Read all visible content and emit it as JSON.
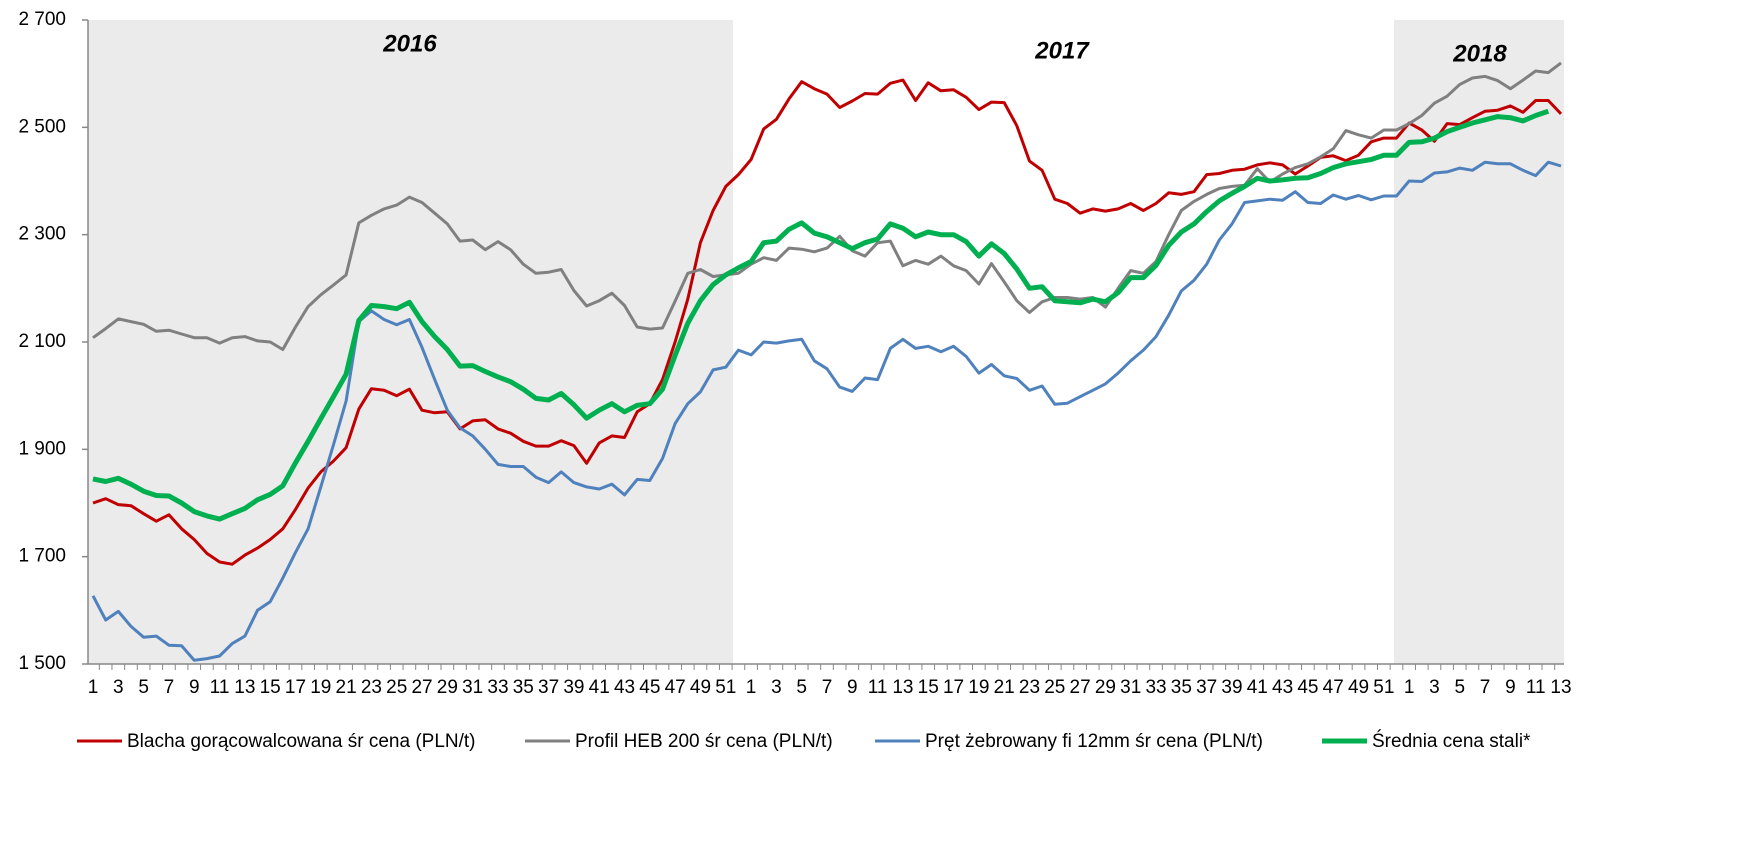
{
  "chart_data": {
    "type": "line",
    "annotations": [
      "2016",
      "2017",
      "2018"
    ],
    "categories": [
      "1",
      null,
      "3",
      null,
      "5",
      null,
      "7",
      null,
      "9",
      null,
      "11",
      null,
      "13",
      null,
      "15",
      null,
      "17",
      null,
      "19",
      null,
      "21",
      null,
      "23",
      null,
      "25",
      null,
      "27",
      null,
      "29",
      null,
      "31",
      null,
      "33",
      null,
      "35",
      null,
      "37",
      null,
      "39",
      null,
      "41",
      null,
      "43",
      null,
      "45",
      null,
      "47",
      null,
      "49",
      null,
      "51",
      null,
      "1",
      null,
      "3",
      null,
      "5",
      null,
      "7",
      null,
      "9",
      null,
      "11",
      null,
      "13",
      null,
      "15",
      null,
      "17",
      null,
      "19",
      null,
      "21",
      null,
      "23",
      null,
      "25",
      null,
      "27",
      null,
      "29",
      null,
      "31",
      null,
      "33",
      null,
      "35",
      null,
      "37",
      null,
      "39",
      null,
      "41",
      null,
      "43",
      null,
      "45",
      null,
      "47",
      null,
      "49",
      null,
      "51",
      null,
      "1",
      null,
      "3",
      null,
      "5",
      null,
      "7",
      null,
      "9",
      null,
      "11",
      null,
      "13"
    ],
    "series": [
      {
        "name": "Blacha gorącowalcowana śr cena (PLN/t)",
        "color": "#c00000",
        "width": 3,
        "values": [
          1800,
          1808,
          1797,
          1795,
          1780,
          1766,
          1778,
          1752,
          1732,
          1706,
          1690,
          1686,
          1703,
          1716,
          1732,
          1752,
          1788,
          1828,
          1858,
          1878,
          1903,
          1975,
          2013,
          2010,
          2000,
          2012,
          1973,
          1968,
          1970,
          1938,
          1953,
          1955,
          1938,
          1930,
          1915,
          1906,
          1906,
          1916,
          1907,
          1874,
          1912,
          1925,
          1922,
          1970,
          1985,
          2030,
          2100,
          2180,
          2285,
          2345,
          2390,
          2412,
          2440,
          2497,
          2515,
          2553,
          2585,
          2572,
          2562,
          2537,
          2549,
          2563,
          2562,
          2582,
          2588,
          2550,
          2583,
          2568,
          2570,
          2556,
          2533,
          2547,
          2546,
          2503,
          2437,
          2420,
          2366,
          2358,
          2340,
          2348,
          2344,
          2348,
          2358,
          2345,
          2358,
          2378,
          2375,
          2380,
          2412,
          2414,
          2420,
          2422,
          2430,
          2434,
          2430,
          2413,
          2428,
          2444,
          2447,
          2438,
          2448,
          2473,
          2480,
          2480,
          2508,
          2495,
          2474,
          2507,
          2505,
          2518,
          2530,
          2532,
          2540,
          2528,
          2550,
          2550,
          2525
        ]
      },
      {
        "name": "Profil HEB 200 śr cena (PLN/t)",
        "color": "#808080",
        "width": 3,
        "values": [
          2108,
          2125,
          2143,
          2138,
          2133,
          2120,
          2122,
          2115,
          2108,
          2108,
          2098,
          2108,
          2110,
          2102,
          2100,
          2086,
          2128,
          2166,
          2188,
          2206,
          2225,
          2322,
          2336,
          2348,
          2355,
          2370,
          2360,
          2340,
          2320,
          2288,
          2290,
          2272,
          2287,
          2272,
          2245,
          2228,
          2230,
          2235,
          2196,
          2167,
          2177,
          2191,
          2168,
          2128,
          2124,
          2126,
          2176,
          2228,
          2235,
          2222,
          2225,
          2228,
          2245,
          2257,
          2252,
          2275,
          2273,
          2268,
          2275,
          2297,
          2270,
          2260,
          2285,
          2288,
          2242,
          2252,
          2245,
          2260,
          2242,
          2233,
          2208,
          2246,
          2212,
          2177,
          2155,
          2175,
          2183,
          2183,
          2180,
          2183,
          2165,
          2200,
          2233,
          2228,
          2250,
          2300,
          2345,
          2362,
          2375,
          2386,
          2390,
          2392,
          2423,
          2398,
          2413,
          2425,
          2432,
          2445,
          2460,
          2494,
          2486,
          2480,
          2495,
          2495,
          2507,
          2522,
          2545,
          2558,
          2580,
          2592,
          2595,
          2587,
          2572,
          2588,
          2605,
          2602,
          2620
        ]
      },
      {
        "name": "Pręt żebrowany fi 12mm  śr cena (PLN/t)",
        "color": "#4f81bd",
        "width": 3,
        "values": [
          1627,
          1582,
          1598,
          1570,
          1550,
          1552,
          1535,
          1534,
          1507,
          1510,
          1515,
          1538,
          1552,
          1600,
          1616,
          1660,
          1708,
          1752,
          1830,
          1908,
          1990,
          2138,
          2158,
          2142,
          2132,
          2142,
          2090,
          2030,
          1973,
          1940,
          1925,
          1900,
          1872,
          1868,
          1868,
          1848,
          1838,
          1858,
          1838,
          1830,
          1826,
          1835,
          1815,
          1844,
          1842,
          1883,
          1948,
          1985,
          2007,
          2048,
          2053,
          2085,
          2076,
          2100,
          2098,
          2102,
          2105,
          2065,
          2050,
          2016,
          2008,
          2033,
          2030,
          2088,
          2105,
          2088,
          2092,
          2082,
          2092,
          2073,
          2042,
          2058,
          2037,
          2032,
          2010,
          2018,
          1984,
          1986,
          1998,
          2010,
          2022,
          2042,
          2065,
          2085,
          2110,
          2150,
          2195,
          2215,
          2245,
          2290,
          2320,
          2360,
          2363,
          2366,
          2364,
          2380,
          2360,
          2358,
          2374,
          2366,
          2373,
          2365,
          2372,
          2372,
          2400,
          2399,
          2415,
          2417,
          2424,
          2420,
          2435,
          2432,
          2432,
          2420,
          2410,
          2435,
          2428
        ]
      },
      {
        "name": "Średnia cena stali*",
        "color": "#00b050",
        "width": 5,
        "values": [
          1845,
          1840,
          1846,
          1835,
          1822,
          1814,
          1813,
          1800,
          1784,
          1776,
          1770,
          1780,
          1790,
          1806,
          1816,
          1832,
          1875,
          1915,
          1957,
          1998,
          2040,
          2140,
          2168,
          2166,
          2162,
          2174,
          2138,
          2110,
          2086,
          2055,
          2056,
          2045,
          2035,
          2026,
          2012,
          1995,
          1992,
          2004,
          1983,
          1958,
          1973,
          1985,
          1970,
          1982,
          1985,
          2012,
          2075,
          2135,
          2177,
          2207,
          2225,
          2238,
          2250,
          2285,
          2288,
          2310,
          2322,
          2303,
          2296,
          2285,
          2274,
          2285,
          2292,
          2320,
          2312,
          2296,
          2305,
          2300,
          2300,
          2287,
          2260,
          2283,
          2265,
          2236,
          2200,
          2203,
          2177,
          2175,
          2173,
          2180,
          2175,
          2192,
          2220,
          2220,
          2243,
          2280,
          2305,
          2320,
          2343,
          2363,
          2377,
          2390,
          2405,
          2400,
          2402,
          2405,
          2406,
          2414,
          2425,
          2432,
          2436,
          2440,
          2448,
          2448,
          2472,
          2473,
          2480,
          2492,
          2500,
          2508,
          2514,
          2520,
          2518,
          2512,
          2522,
          2530,
          null
        ]
      }
    ],
    "ylim": [
      1500,
      2700
    ],
    "yticks": [
      {
        "value": 1500,
        "label": "1 500"
      },
      {
        "value": 1700,
        "label": "1 700"
      },
      {
        "value": 1900,
        "label": "1 900"
      },
      {
        "value": 2100,
        "label": "2 100"
      },
      {
        "value": 2300,
        "label": "2 300"
      },
      {
        "value": 2500,
        "label": "2 500"
      },
      {
        "value": 2700,
        "label": "2 700"
      }
    ],
    "grid": false
  }
}
